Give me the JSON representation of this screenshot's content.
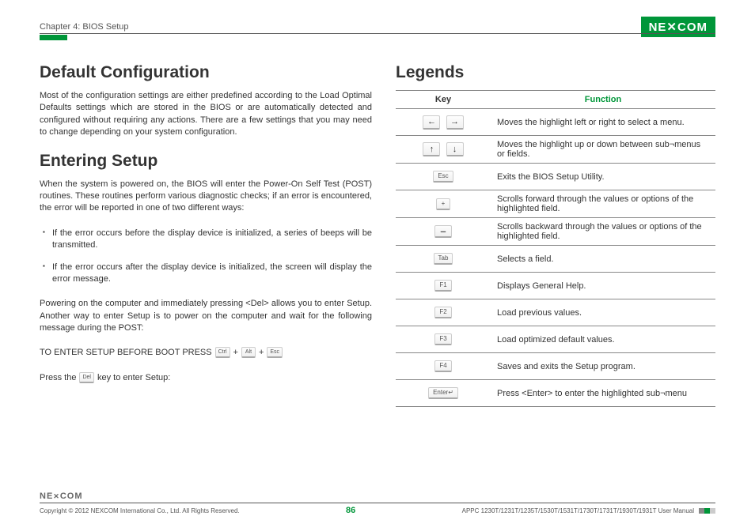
{
  "header": {
    "chapter": "Chapter 4: BIOS Setup",
    "logo": "NEXCOM"
  },
  "left": {
    "h1a": "Default Configuration",
    "p1": "Most of the configuration settings are either predefined according to the Load Optimal Defaults settings which are stored in the BIOS or are automatically detected and configured without requiring any actions. There are a few settings that you may need to change depending on your system configuration.",
    "h1b": "Entering Setup",
    "p2": "When the system is powered on, the BIOS will enter the Power-On Self Test (POST) routines. These routines perform various diagnostic checks; if an error is encountered, the error will be reported in one of two different ways:",
    "li1": "If the error occurs before the display device is initialized, a series of beeps will be transmitted.",
    "li2": "If the error occurs after the display device is initialized, the screen will display the error message.",
    "p3": "Powering on the computer and immediately pressing <Del> allows you to enter Setup. Another way to enter Setup is to power on the computer and wait for the following message during the POST:",
    "setup_prefix": "TO ENTER SETUP BEFORE BOOT PRESS",
    "k_ctrl": "Ctrl",
    "k_alt": "Alt",
    "k_esc": "Esc",
    "plus": "+",
    "press_prefix": "Press the",
    "k_del": "Del",
    "press_suffix": "key to enter Setup:"
  },
  "right": {
    "h1": "Legends",
    "th_key": "Key",
    "th_func": "Function",
    "rows": {
      "r0_func": "Moves the highlight left or right to select a menu.",
      "r1_func": "Moves the highlight up or down between sub¬menus or fields.",
      "r2_key": "Esc",
      "r2_func": "Exits the BIOS Setup Utility.",
      "r3_key": "+",
      "r3_func": "Scrolls forward through the values or options of the highlighted field.",
      "r4_key": "–",
      "r4_func": "Scrolls backward through the values or options of the highlighted field.",
      "r5_key": "Tab",
      "r5_func": "Selects a field.",
      "r6_key": "F1",
      "r6_func": "Displays General Help.",
      "r7_key": "F2",
      "r7_func": "Load previous values.",
      "r8_key": "F3",
      "r8_func": "Load optimized default values.",
      "r9_key": "F4",
      "r9_func": "Saves and exits the Setup program.",
      "r10_key": "Enter↵",
      "r10_func": "Press <Enter> to enter the highlighted sub¬menu"
    },
    "arrows": {
      "left": "←",
      "right": "→",
      "up": "↑",
      "down": "↓"
    }
  },
  "footer": {
    "logo": "NE&COM",
    "copyright": "Copyright © 2012 NEXCOM International Co., Ltd. All Rights Reserved.",
    "page": "86",
    "manual": "APPC 1230T/1231T/1235T/1530T/1531T/1730T/1731T/1930T/1931T User Manual"
  }
}
